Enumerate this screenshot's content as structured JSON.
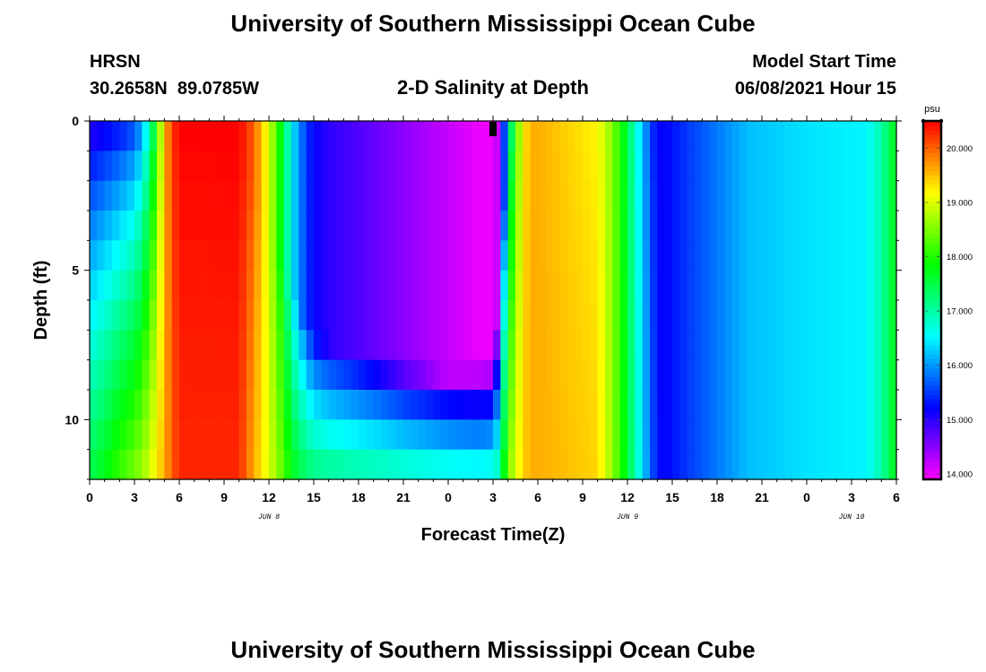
{
  "header": {
    "title": "University of Southern Mississippi Ocean Cube",
    "station": "HRSN",
    "coords": "30.2658N  89.0785W",
    "subtitle": "2-D Salinity at Depth",
    "model_label": "Model Start Time",
    "model_time": "06/08/2021 Hour 15",
    "footer_title": "University of Southern Mississippi Ocean Cube"
  },
  "chart_data": {
    "type": "heatmap",
    "title": "2-D Salinity at Depth",
    "xlabel": "Forecast Time(Z)",
    "ylabel": "Depth (ft)",
    "x_tick_labels": [
      "0",
      "3",
      "6",
      "9",
      "12",
      "15",
      "18",
      "21",
      "0",
      "3",
      "6",
      "9",
      "12",
      "15",
      "18",
      "21",
      "0",
      "3",
      "6"
    ],
    "x_range_hours": [
      0,
      54
    ],
    "date_labels": [
      {
        "hour": 12,
        "label": "JUN 8"
      },
      {
        "hour": 36,
        "label": "JUN 9"
      },
      {
        "hour": 51,
        "label": "JUN 10"
      }
    ],
    "y_range_ft": [
      0,
      12
    ],
    "y_ticks": [
      0,
      5,
      10
    ],
    "now_marker_hour": 27,
    "colorbar": {
      "unit": "psu",
      "min": 13.9,
      "max": 20.5,
      "tick_values": [
        14,
        15,
        16,
        17,
        18,
        19,
        20
      ],
      "tick_labels": [
        "14.000",
        "15.000",
        "16.000",
        "17.000",
        "18.000",
        "19.000",
        "20.000"
      ]
    },
    "salinity_model_psu": {
      "time_hours": [
        0,
        1,
        2,
        3,
        3.5,
        4,
        4.5,
        5,
        5.5,
        6,
        10,
        11,
        12,
        13,
        13.5,
        14,
        14.5,
        15,
        16,
        21,
        26,
        27,
        27.3,
        27.6,
        28,
        28.5,
        29,
        29.5,
        30,
        34,
        35,
        36,
        36.5,
        37,
        37.5,
        38,
        38.5,
        40,
        44,
        48,
        52,
        53,
        54
      ],
      "surface": [
        14.8,
        15.0,
        15.2,
        15.5,
        16.0,
        16.8,
        18.0,
        19.5,
        20.2,
        20.5,
        20.5,
        20.0,
        19.0,
        17.5,
        16.5,
        16.0,
        15.5,
        15.2,
        15.0,
        14.5,
        14.0,
        14.0,
        14.2,
        15.0,
        16.5,
        18.0,
        19.2,
        19.6,
        19.6,
        19.2,
        18.5,
        17.5,
        16.8,
        16.2,
        15.6,
        15.2,
        15.2,
        15.5,
        16.2,
        16.4,
        16.5,
        17.0,
        17.8
      ],
      "bottom": [
        17.5,
        17.8,
        18.2,
        18.5,
        18.7,
        19.0,
        19.3,
        19.6,
        20.0,
        20.3,
        20.3,
        19.6,
        19.0,
        18.3,
        17.8,
        17.6,
        17.4,
        17.3,
        17.2,
        17.0,
        16.8,
        16.9,
        17.0,
        17.5,
        18.5,
        19.0,
        19.4,
        19.6,
        19.6,
        19.4,
        18.6,
        17.6,
        17.0,
        16.4,
        15.8,
        15.3,
        15.2,
        15.5,
        16.2,
        16.4,
        16.5,
        17.0,
        17.8
      ]
    },
    "halocline_depth_ft": {
      "time_hours": [
        0,
        4,
        8,
        10,
        11,
        12,
        13,
        14,
        15,
        16,
        18,
        21,
        24,
        27,
        27.5,
        28,
        30,
        38,
        54
      ],
      "depth": [
        0,
        0.3,
        0.5,
        1,
        2,
        3.5,
        5,
        6.5,
        7.3,
        7.5,
        7.8,
        8.3,
        8.5,
        8.3,
        6,
        0,
        0,
        0,
        0
      ]
    }
  }
}
